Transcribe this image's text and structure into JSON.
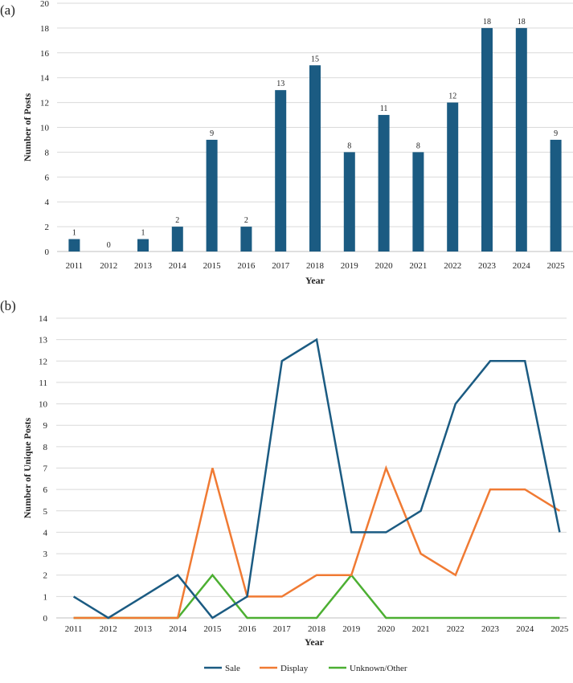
{
  "colors": {
    "bar": "#1b5b82",
    "sale": "#1b5b82",
    "display": "#f07a33",
    "unknown": "#4caf32",
    "grid": "#d9d9d9",
    "axis": "#bfbfbf"
  },
  "chart_data": [
    {
      "panel_label": "(a)",
      "type": "bar",
      "categories": [
        "2011",
        "2012",
        "2013",
        "2014",
        "2015",
        "2016",
        "2017",
        "2018",
        "2019",
        "2020",
        "2021",
        "2022",
        "2023",
        "2024",
        "2025"
      ],
      "values": [
        1,
        0,
        1,
        2,
        9,
        2,
        13,
        15,
        8,
        11,
        8,
        12,
        18,
        18,
        9
      ],
      "xlabel": "Year",
      "ylabel": "Number of Posts",
      "ylim": [
        0,
        20
      ],
      "yticks": [
        0,
        2,
        4,
        6,
        8,
        10,
        12,
        14,
        16,
        18,
        20
      ],
      "grid": true,
      "data_labels": true
    },
    {
      "panel_label": "(b)",
      "type": "line",
      "categories": [
        "2011",
        "2012",
        "2013",
        "2014",
        "2015",
        "2016",
        "2017",
        "2018",
        "2019",
        "2020",
        "2021",
        "2022",
        "2023",
        "2024",
        "2025"
      ],
      "series": [
        {
          "name": "Sale",
          "color_key": "sale",
          "values": [
            1,
            0,
            1,
            2,
            0,
            1,
            12,
            13,
            4,
            4,
            5,
            10,
            12,
            12,
            4
          ]
        },
        {
          "name": "Display",
          "color_key": "display",
          "values": [
            0,
            0,
            0,
            0,
            7,
            1,
            1,
            2,
            2,
            7,
            3,
            2,
            6,
            6,
            5
          ]
        },
        {
          "name": "Unknown/Other",
          "color_key": "unknown",
          "values": [
            0,
            0,
            0,
            0,
            2,
            0,
            0,
            0,
            2,
            0,
            0,
            0,
            0,
            0,
            0
          ]
        }
      ],
      "xlabel": "Year",
      "ylabel": "Number of Unique Posts",
      "ylim": [
        0,
        14
      ],
      "yticks": [
        0,
        1,
        2,
        3,
        4,
        5,
        6,
        7,
        8,
        9,
        10,
        11,
        12,
        13,
        14
      ],
      "grid": true,
      "legend_position": "bottom"
    }
  ]
}
